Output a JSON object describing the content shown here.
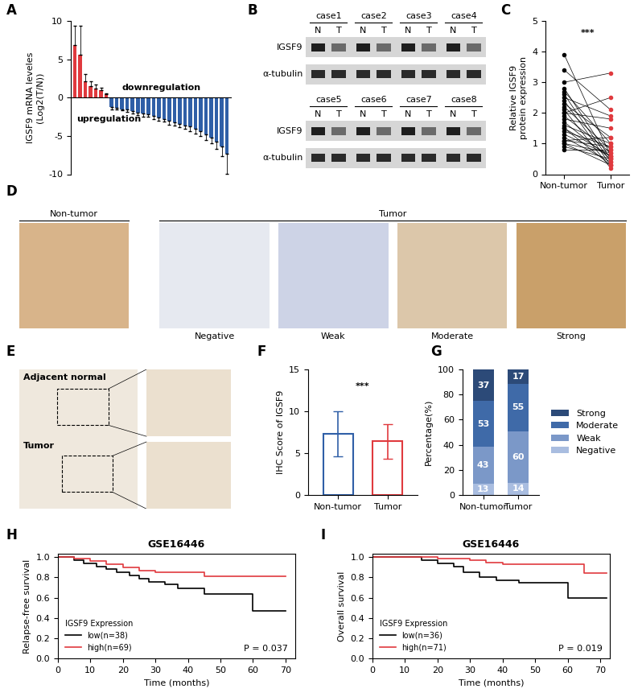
{
  "chart_data": [
    {
      "panel": "A",
      "type": "bar",
      "categories": [
        null,
        null,
        null,
        null,
        null,
        null,
        null,
        null,
        null,
        null,
        null,
        null,
        null,
        null,
        null,
        null,
        null,
        null,
        null,
        null,
        null,
        null,
        null,
        null,
        null,
        null,
        null,
        null,
        null,
        null
      ],
      "values": [
        6.8,
        5.6,
        2.1,
        1.5,
        1.2,
        1.0,
        0.4,
        -1.2,
        -1.3,
        -1.5,
        -1.6,
        -1.8,
        -2.0,
        -2.1,
        -2.2,
        -2.4,
        -2.6,
        -2.8,
        -3.0,
        -3.2,
        -3.4,
        -3.6,
        -3.8,
        -4.1,
        -4.4,
        -4.8,
        -5.2,
        -5.8,
        -6.4,
        -7.3
      ],
      "errors": [
        2.6,
        3.8,
        1.0,
        0.6,
        0.5,
        0.3,
        0.2,
        0.3,
        0.3,
        0.2,
        0.3,
        0.3,
        0.3,
        0.4,
        0.3,
        0.4,
        0.4,
        0.3,
        0.5,
        0.4,
        0.5,
        0.5,
        0.6,
        0.6,
        0.6,
        0.7,
        0.8,
        0.9,
        1.2,
        2.6
      ],
      "colors": [
        "#e03a3e",
        "#e03a3e",
        "#e03a3e",
        "#e03a3e",
        "#e03a3e",
        "#e03a3e",
        "#e03a3e",
        "#2f5fa7",
        "#2f5fa7",
        "#2f5fa7",
        "#2f5fa7",
        "#2f5fa7",
        "#2f5fa7",
        "#2f5fa7",
        "#2f5fa7",
        "#2f5fa7",
        "#2f5fa7",
        "#2f5fa7",
        "#2f5fa7",
        "#2f5fa7",
        "#2f5fa7",
        "#2f5fa7",
        "#2f5fa7",
        "#2f5fa7",
        "#2f5fa7",
        "#2f5fa7",
        "#2f5fa7",
        "#2f5fa7",
        "#2f5fa7",
        "#2f5fa7"
      ],
      "ylabel": "IGSF9 mRNA leveles\n(Log2(T/N))",
      "annotations": [
        "upregulation",
        "downregulation"
      ],
      "ylim": [
        -10,
        10
      ],
      "yticks": [
        -10,
        -5,
        0,
        5,
        10
      ],
      "tick_labels": "y"
    },
    {
      "panel": "B",
      "type": "image",
      "cases": [
        "case1",
        "case2",
        "case3",
        "case4",
        "case5",
        "case6",
        "case7",
        "case8"
      ],
      "lanes": [
        "N",
        "T"
      ],
      "rows": [
        "IGSF9",
        "α-tubulin"
      ]
    },
    {
      "panel": "C",
      "type": "line",
      "categories": [
        "Non-tumor",
        "Tumor"
      ],
      "non_tumor": [
        3.9,
        3.4,
        3.0,
        2.8,
        2.7,
        2.6,
        2.5,
        2.4,
        2.3,
        2.2,
        2.1,
        2.0,
        1.9,
        1.8,
        1.7,
        1.6,
        1.5,
        1.4,
        1.3,
        1.2,
        1.1,
        1.0,
        1.0,
        0.9,
        0.8,
        1.5,
        2.0,
        1.1
      ],
      "tumor": [
        0.6,
        2.1,
        3.3,
        0.5,
        1.0,
        0.4,
        1.9,
        0.3,
        1.2,
        0.8,
        0.2,
        2.5,
        0.7,
        1.5,
        0.5,
        1.0,
        0.3,
        0.9,
        0.6,
        0.4,
        1.2,
        0.7,
        0.3,
        0.5,
        0.8,
        0.6,
        1.8,
        0.9
      ],
      "colors": [
        "#000000",
        "#e03a3e"
      ],
      "ylabel": "Relative IGSF9\nprotein expression",
      "annotations": [
        "***"
      ],
      "ylim": [
        0,
        5
      ],
      "yticks": [
        0,
        1,
        2,
        3,
        4,
        5
      ]
    },
    {
      "panel": "D",
      "type": "image",
      "groups": [
        "Non-tumor",
        "Tumor"
      ],
      "labels": [
        "Negative",
        "Weak",
        "Moderate",
        "Strong"
      ]
    },
    {
      "panel": "E",
      "type": "image",
      "labels": [
        "Adjacent normal",
        "Tumor"
      ]
    },
    {
      "panel": "F",
      "type": "bar",
      "categories": [
        "Non-tumor",
        "Tumor"
      ],
      "values": [
        7.3,
        6.4
      ],
      "errors": [
        2.7,
        2.1
      ],
      "colors": [
        "#2f5fa7",
        "#e03a3e"
      ],
      "ylabel": "IHC Score of IGSF9",
      "annotations": [
        "***"
      ],
      "ylim": [
        0,
        15
      ],
      "yticks": [
        0,
        5,
        10,
        15
      ]
    },
    {
      "panel": "G",
      "type": "bar",
      "stacked": true,
      "categories": [
        "Non-tumor",
        "Tumor"
      ],
      "series": [
        {
          "name": "Negative",
          "color": "#a9bde0",
          "values": [
            8.9,
            9.6
          ],
          "counts": [
            13,
            14
          ]
        },
        {
          "name": "Weak",
          "color": "#7b98c8",
          "values": [
            29.5,
            41.1
          ],
          "counts": [
            43,
            60
          ]
        },
        {
          "name": "Moderate",
          "color": "#3f6aa8",
          "values": [
            36.3,
            37.7
          ],
          "counts": [
            53,
            55
          ]
        },
        {
          "name": "Strong",
          "color": "#2c4a78",
          "values": [
            25.3,
            11.6
          ],
          "counts": [
            37,
            17
          ]
        }
      ],
      "ylabel": "Percentage(%)",
      "ylim": [
        0,
        100
      ],
      "yticks": [
        0,
        20,
        40,
        60,
        80,
        100
      ],
      "legend": "right"
    },
    {
      "panel": "H",
      "type": "line",
      "title": "GSE16446",
      "xlabel": "Time (months)",
      "ylabel": "Relapse-free survival",
      "series": [
        {
          "name": "low(n=38)",
          "color": "#000000",
          "x": [
            0,
            5,
            8,
            12,
            15,
            18,
            22,
            25,
            28,
            33,
            37,
            45,
            60,
            70
          ],
          "values": [
            1.0,
            0.97,
            0.94,
            0.91,
            0.88,
            0.85,
            0.82,
            0.79,
            0.76,
            0.73,
            0.69,
            0.64,
            0.47,
            0.47
          ]
        },
        {
          "name": "high(n=69)",
          "color": "#e03a3e",
          "x": [
            0,
            5,
            10,
            15,
            20,
            25,
            30,
            45,
            70
          ],
          "values": [
            1.0,
            0.99,
            0.96,
            0.93,
            0.9,
            0.87,
            0.85,
            0.81,
            0.81
          ]
        }
      ],
      "legend": "lower left",
      "legend_title": "IGSF9 Expression",
      "annotations": [
        "P = 0.037"
      ],
      "xlim": [
        0,
        73
      ],
      "xticks": [
        0,
        10,
        20,
        30,
        40,
        50,
        60,
        70
      ],
      "ylim": [
        0,
        1.03
      ],
      "yticks": [
        0.0,
        0.2,
        0.4,
        0.6,
        0.8,
        1.0
      ]
    },
    {
      "panel": "I",
      "type": "line",
      "title": "GSE16446",
      "xlabel": "Time (months)",
      "ylabel": "Overall survival",
      "series": [
        {
          "name": "low(n=36)",
          "color": "#000000",
          "x": [
            0,
            15,
            20,
            25,
            28,
            33,
            38,
            45,
            60,
            72
          ],
          "values": [
            1.0,
            0.97,
            0.94,
            0.91,
            0.85,
            0.8,
            0.77,
            0.75,
            0.6,
            0.6
          ]
        },
        {
          "name": "high(n=71)",
          "color": "#e03a3e",
          "x": [
            0,
            20,
            30,
            35,
            40,
            65,
            72
          ],
          "values": [
            1.0,
            0.99,
            0.97,
            0.95,
            0.93,
            0.84,
            0.84
          ]
        }
      ],
      "legend": "lower left",
      "legend_title": "IGSF9 Expression",
      "annotations": [
        "P = 0.019"
      ],
      "xlim": [
        0,
        73
      ],
      "xticks": [
        0,
        10,
        20,
        30,
        40,
        50,
        60,
        70
      ],
      "ylim": [
        0,
        1.03
      ],
      "yticks": [
        0.0,
        0.2,
        0.4,
        0.6,
        0.8,
        1.0
      ]
    }
  ]
}
